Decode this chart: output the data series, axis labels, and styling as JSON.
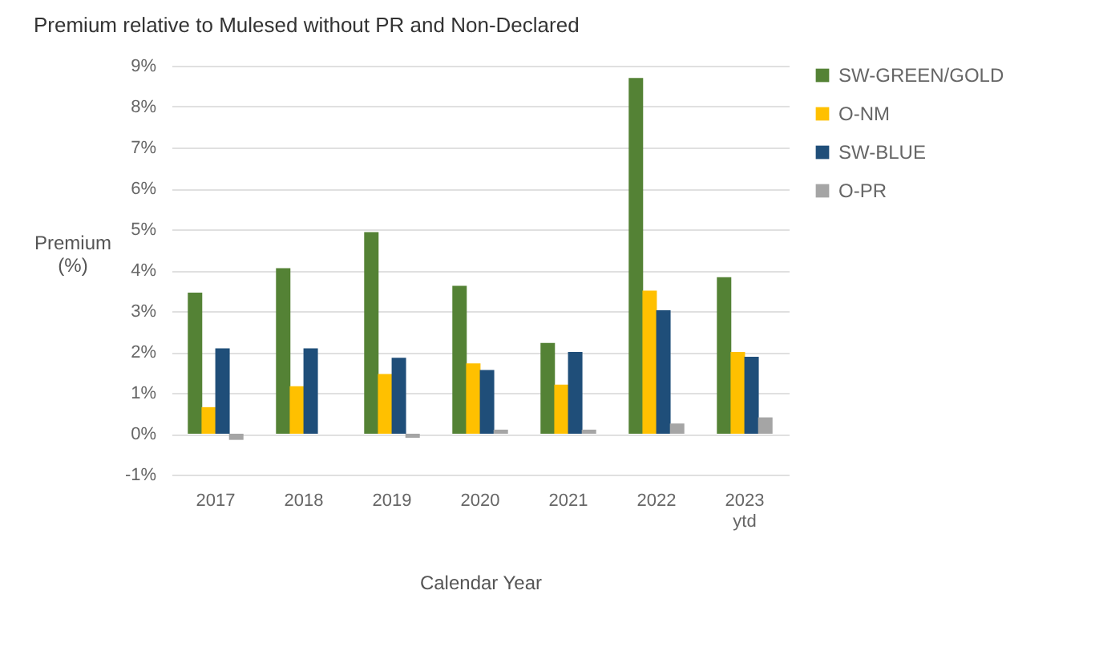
{
  "chart_data": {
    "type": "bar",
    "title": "Premium relative to Mulesed without PR and Non-Declared",
    "xlabel": "Calendar Year",
    "ylabel": "Premium (%)",
    "categories": [
      "2017",
      "2018",
      "2019",
      "2020",
      "2021",
      "2022",
      "2023 ytd"
    ],
    "series": [
      {
        "name": "SW-GREEN/GOLD",
        "color": "#548235",
        "values": [
          3.45,
          4.05,
          4.93,
          3.62,
          2.22,
          8.7,
          3.83
        ]
      },
      {
        "name": "O-NM",
        "color": "#ffc000",
        "values": [
          0.65,
          1.16,
          1.46,
          1.72,
          1.2,
          3.5,
          2.0
        ]
      },
      {
        "name": "SW-BLUE",
        "color": "#1f4e79",
        "values": [
          2.09,
          2.09,
          1.86,
          1.56,
          2.0,
          3.02,
          1.88
        ]
      },
      {
        "name": "O-PR",
        "color": "#a5a5a5",
        "values": [
          -0.15,
          0,
          -0.1,
          0.1,
          0.1,
          0.25,
          0.4
        ]
      }
    ],
    "ylim": [
      -1,
      9
    ],
    "yticks": [
      {
        "value": -1,
        "label": "-1%"
      },
      {
        "value": 0,
        "label": "0%"
      },
      {
        "value": 1,
        "label": "1%"
      },
      {
        "value": 2,
        "label": "2%"
      },
      {
        "value": 3,
        "label": "3%"
      },
      {
        "value": 4,
        "label": "4%"
      },
      {
        "value": 5,
        "label": "5%"
      },
      {
        "value": 6,
        "label": "6%"
      },
      {
        "value": 7,
        "label": "7%"
      },
      {
        "value": 8,
        "label": "8%"
      },
      {
        "value": 9,
        "label": "9%"
      }
    ],
    "grid": "y",
    "legend": "right"
  }
}
